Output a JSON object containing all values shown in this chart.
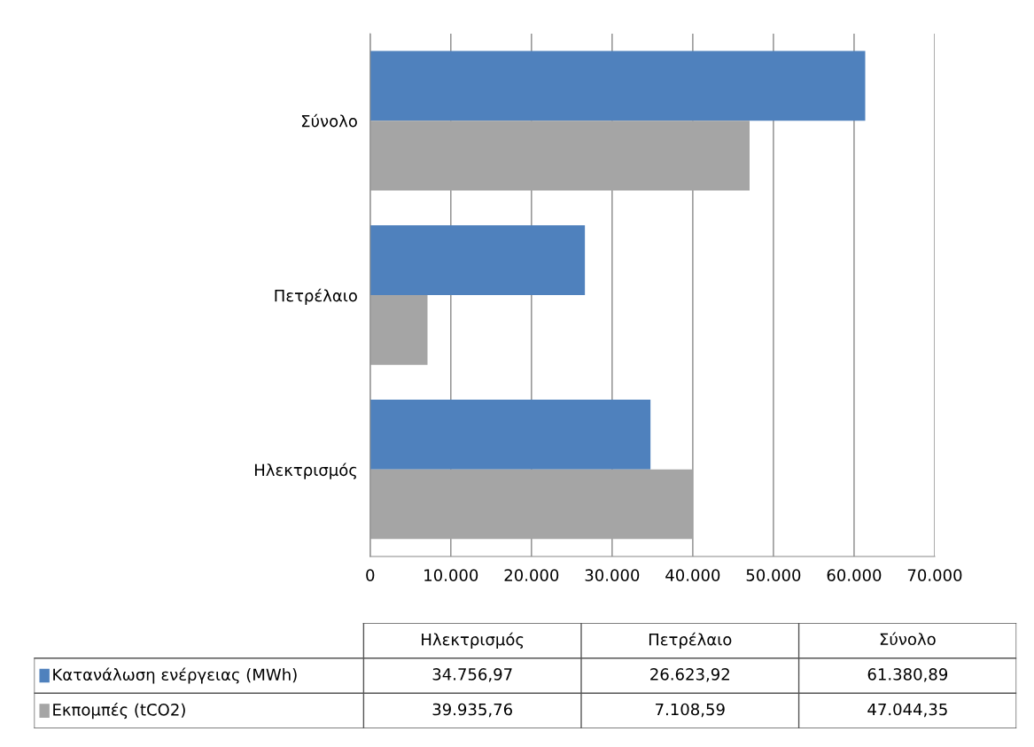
{
  "chart_data": {
    "type": "bar",
    "orientation": "horizontal",
    "categories": [
      "Σύνολο",
      "Πετρέλαιο",
      "Ηλεκτρισμός"
    ],
    "series": [
      {
        "name": "Κατανάλωση ενέργειας (MWh)",
        "color": "#4f81bd",
        "values": [
          61380.89,
          26623.92,
          34756.97
        ]
      },
      {
        "name": "Εκπομπές (tCO2)",
        "color": "#a5a5a5",
        "values": [
          47044.35,
          7108.59,
          39935.76
        ]
      }
    ],
    "annotations": [
      "34.756,97",
      "26.623,92",
      "61.380,89",
      "39.935,76",
      "7.108,59",
      "47.044,35"
    ],
    "xlim": [
      0,
      70000
    ],
    "xticks": [
      0,
      {
        "value": 10000,
        "label": "10.000"
      },
      {
        "value": 20000,
        "label": "20.000"
      },
      {
        "value": 30000,
        "label": "30.000"
      },
      {
        "value": 40000,
        "label": "40.000"
      },
      {
        "value": 50000,
        "label": "50.000"
      },
      {
        "value": 60000,
        "label": "60.000"
      },
      {
        "value": 70000,
        "label": "70.000"
      }
    ],
    "grid": "x",
    "legend": "bottom"
  }
}
